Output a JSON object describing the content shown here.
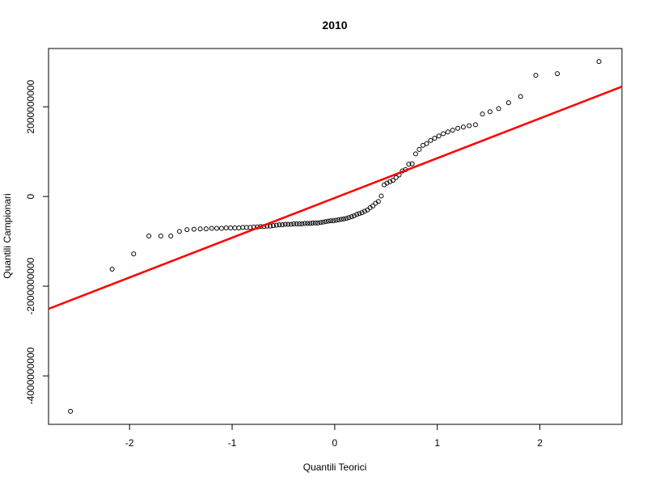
{
  "chart_data": {
    "type": "scatter",
    "title": "2010",
    "x_label": "Quantili Teorici",
    "y_label": "Quantili Campionari",
    "x": [
      -2.576,
      -2.17,
      -1.96,
      -1.812,
      -1.695,
      -1.598,
      -1.514,
      -1.44,
      -1.372,
      -1.311,
      -1.254,
      -1.2,
      -1.15,
      -1.103,
      -1.058,
      -1.015,
      -0.974,
      -0.935,
      -0.896,
      -0.86,
      -0.824,
      -0.789,
      -0.755,
      -0.722,
      -0.69,
      -0.659,
      -0.628,
      -0.598,
      -0.568,
      -0.539,
      -0.51,
      -0.482,
      -0.454,
      -0.426,
      -0.399,
      -0.372,
      -0.345,
      -0.319,
      -0.292,
      -0.266,
      -0.24,
      -0.215,
      -0.189,
      -0.164,
      -0.138,
      -0.113,
      -0.088,
      -0.063,
      -0.038,
      -0.013,
      0.013,
      0.038,
      0.063,
      0.088,
      0.113,
      0.138,
      0.164,
      0.189,
      0.215,
      0.24,
      0.266,
      0.292,
      0.319,
      0.345,
      0.372,
      0.399,
      0.426,
      0.454,
      0.482,
      0.51,
      0.539,
      0.568,
      0.598,
      0.628,
      0.659,
      0.69,
      0.722,
      0.755,
      0.789,
      0.824,
      0.86,
      0.896,
      0.935,
      0.974,
      1.015,
      1.058,
      1.103,
      1.15,
      1.2,
      1.254,
      1.311,
      1.372,
      1.44,
      1.514,
      1.598,
      1.695,
      1.812,
      1.96,
      2.17,
      2.576
    ],
    "values": [
      -4790000000,
      -1620000000,
      -1280000000,
      -880000000,
      -880000000,
      -880000000,
      -780000000,
      -740000000,
      -730000000,
      -720000000,
      -720000000,
      -710000000,
      -710000000,
      -710000000,
      -700000000,
      -700000000,
      -700000000,
      -700000000,
      -690000000,
      -690000000,
      -690000000,
      -680000000,
      -680000000,
      -670000000,
      -670000000,
      -660000000,
      -660000000,
      -650000000,
      -640000000,
      -630000000,
      -630000000,
      -620000000,
      -620000000,
      -620000000,
      -610000000,
      -610000000,
      -610000000,
      -610000000,
      -600000000,
      -600000000,
      -600000000,
      -590000000,
      -590000000,
      -590000000,
      -580000000,
      -570000000,
      -560000000,
      -550000000,
      -540000000,
      -540000000,
      -530000000,
      -520000000,
      -510000000,
      -500000000,
      -490000000,
      -470000000,
      -450000000,
      -430000000,
      -400000000,
      -380000000,
      -360000000,
      -330000000,
      -300000000,
      -250000000,
      -210000000,
      -150000000,
      -110000000,
      10000000,
      260000000,
      300000000,
      330000000,
      360000000,
      420000000,
      480000000,
      570000000,
      600000000,
      720000000,
      730000000,
      950000000,
      1050000000,
      1140000000,
      1180000000,
      1250000000,
      1300000000,
      1350000000,
      1400000000,
      1440000000,
      1480000000,
      1520000000,
      1550000000,
      1580000000,
      1600000000,
      1840000000,
      1890000000,
      1960000000,
      2090000000,
      2230000000,
      2700000000,
      2740000000,
      3010000000
    ],
    "color": "#000000",
    "reference_line": {
      "x": [
        -2.79,
        2.8
      ],
      "y": [
        -2505000000,
        2450000000
      ],
      "color": "#ff0000"
    },
    "xlim": [
      -2.79,
      2.8
    ],
    "ylim": [
      -5080000000,
      3300000000
    ],
    "xticks": [
      -2,
      -1,
      0,
      1,
      2
    ],
    "yticks": [
      -4000000000,
      -2000000000,
      0,
      2000000000
    ]
  }
}
